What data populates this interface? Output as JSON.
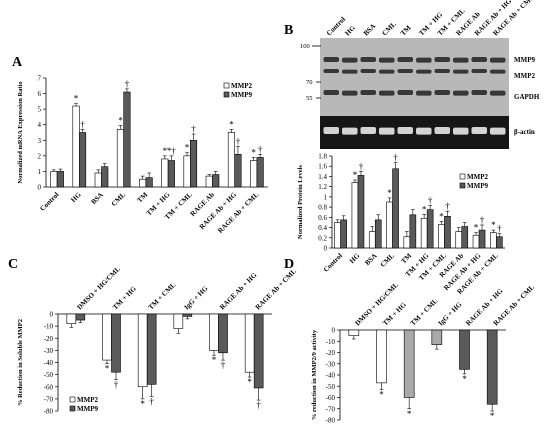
{
  "colors": {
    "light": "#ffffff",
    "dark": "#5a5a5a",
    "medium": "#a9a9a9",
    "ink": "#000000"
  },
  "panel_labels": [
    "A",
    "B",
    "C",
    "D"
  ],
  "blot": {
    "mw_markers": [
      "100",
      "70",
      "55"
    ],
    "lane_labels": [
      "Control",
      "HG",
      "BSA",
      "CML",
      "TM",
      "TM + HG",
      "TM + CML",
      "RAGE Ab",
      "RAGE Ab + HG",
      "RAGE Ab + CML"
    ],
    "band_labels": [
      "MMP9",
      "MMP2",
      "GAPDH",
      "β-actin"
    ]
  },
  "chart_data": [
    {
      "panel": "A",
      "type": "bar",
      "ylabel": "Normalized mRNA Expression Ratio",
      "ylim": [
        0,
        7
      ],
      "yticks": [
        "0",
        "1",
        "2",
        "3",
        "4",
        "5",
        "6",
        "7"
      ],
      "categories": [
        "Control",
        "HG",
        "BSA",
        "CML",
        "TM",
        "TM + HG",
        "TM + CML",
        "RAGE Ab",
        "RAGE Ab + HG",
        "RAGE Ab + CML"
      ],
      "legend": [
        "MMP2",
        "MMP9"
      ],
      "series": [
        {
          "name": "MMP2",
          "values": [
            1.0,
            5.2,
            0.9,
            3.7,
            0.5,
            1.8,
            2.0,
            0.7,
            3.5,
            1.7
          ],
          "errors": [
            0.1,
            0.15,
            0.2,
            0.25,
            0.2,
            0.2,
            0.2,
            0.1,
            0.2,
            0.2
          ]
        },
        {
          "name": "MMP9",
          "values": [
            1.0,
            3.5,
            1.3,
            6.1,
            0.6,
            1.7,
            3.0,
            0.8,
            2.1,
            1.9
          ],
          "errors": [
            0.15,
            0.2,
            0.2,
            0.2,
            0.3,
            0.3,
            0.4,
            0.2,
            0.5,
            0.2
          ]
        }
      ],
      "marks": [
        [
          "",
          ""
        ],
        [
          "*",
          "†"
        ],
        [
          "",
          ""
        ],
        [
          "*",
          "†"
        ],
        [
          "",
          ""
        ],
        [
          "*",
          "*†"
        ],
        [
          "*",
          "†"
        ],
        [
          "",
          ""
        ],
        [
          "*",
          "†"
        ],
        [
          "*",
          "†"
        ]
      ]
    },
    {
      "panel": "B",
      "type": "bar",
      "ylabel": "Normalized Protein Levels",
      "ylim": [
        0,
        1.8
      ],
      "yticks": [
        "0",
        "0.2",
        "0.4",
        "0.6",
        "0.8",
        "1",
        "1.2",
        "1.4",
        "1.6",
        "1.8"
      ],
      "categories": [
        "Control",
        "HG",
        "BSA",
        "CML",
        "TM",
        "TM + HG",
        "TM + CML",
        "RAGE Ab",
        "RAGE Ab + HG",
        "RAGE Ab + CML"
      ],
      "legend": [
        "MMP2",
        "MMP9"
      ],
      "series": [
        {
          "name": "MMP2",
          "values": [
            0.5,
            1.28,
            0.32,
            0.9,
            0.22,
            0.58,
            0.46,
            0.32,
            0.25,
            0.3
          ],
          "errors": [
            0.05,
            0.05,
            0.1,
            0.08,
            0.1,
            0.08,
            0.06,
            0.08,
            0.05,
            0.05
          ]
        },
        {
          "name": "MMP9",
          "values": [
            0.55,
            1.42,
            0.55,
            1.55,
            0.65,
            0.75,
            0.62,
            0.42,
            0.35,
            0.22
          ],
          "errors": [
            0.08,
            0.08,
            0.1,
            0.12,
            0.1,
            0.08,
            0.1,
            0.08,
            0.1,
            0.06
          ]
        }
      ],
      "marks": [
        [
          "",
          ""
        ],
        [
          "*",
          "†"
        ],
        [
          "",
          ""
        ],
        [
          "*",
          "†"
        ],
        [
          "",
          ""
        ],
        [
          "*",
          "†"
        ],
        [
          "*",
          "†"
        ],
        [
          "",
          ""
        ],
        [
          "*",
          "†"
        ],
        [
          "*",
          "†"
        ]
      ]
    },
    {
      "panel": "C",
      "type": "bar",
      "ylabel": "% Reduction in Soluble MMP2",
      "ylim": [
        -80,
        0
      ],
      "yticks": [
        "0",
        "-10",
        "-20",
        "-30",
        "-40",
        "-50",
        "-60",
        "-70",
        "-80"
      ],
      "categories": [
        "DMSO + HG/CML",
        "TM + HG",
        "TM + CML",
        "IgG + HG",
        "RAGE Ab + HG",
        "RAGE Ab + CML"
      ],
      "legend": [
        "MMP2",
        "MMP9"
      ],
      "series": [
        {
          "name": "MMP2",
          "values": [
            -8,
            -38,
            -60,
            -12,
            -30,
            -48
          ],
          "errors": [
            3,
            3,
            10,
            4,
            4,
            4
          ]
        },
        {
          "name": "MMP9",
          "values": [
            -5,
            -48,
            -58,
            -2,
            -32,
            -61
          ],
          "errors": [
            2,
            6,
            10,
            2,
            6,
            10
          ]
        }
      ],
      "marks": [
        [
          "",
          ""
        ],
        [
          "*",
          "†"
        ],
        [
          "*",
          "†"
        ],
        [
          "",
          ""
        ],
        [
          "*",
          "†"
        ],
        [
          "*",
          "†"
        ]
      ]
    },
    {
      "panel": "D",
      "type": "bar",
      "ylabel": "% reduction in MMP2/9 activity",
      "ylim": [
        -80,
        0
      ],
      "yticks": [
        "0",
        "-10",
        "-20",
        "-30",
        "-40",
        "-50",
        "-60",
        "-70",
        "-80"
      ],
      "categories": [
        "DMSO + HG/CML",
        "TM + HG",
        "TM + CML",
        "IgG + HG",
        "RAGE Ab + HG",
        "RAGE Ab + CML"
      ],
      "series": [
        {
          "values": [
            -5,
            -47,
            -60,
            -13,
            -35,
            -66
          ],
          "errors": [
            3,
            6,
            10,
            4,
            4,
            6
          ],
          "shades": [
            "#ffffff",
            "#ffffff",
            "#a9a9a9",
            "#a9a9a9",
            "#5a5a5a",
            "#5a5a5a"
          ]
        }
      ],
      "marks": [
        "",
        "*",
        "*",
        "",
        "*",
        "*"
      ]
    }
  ]
}
